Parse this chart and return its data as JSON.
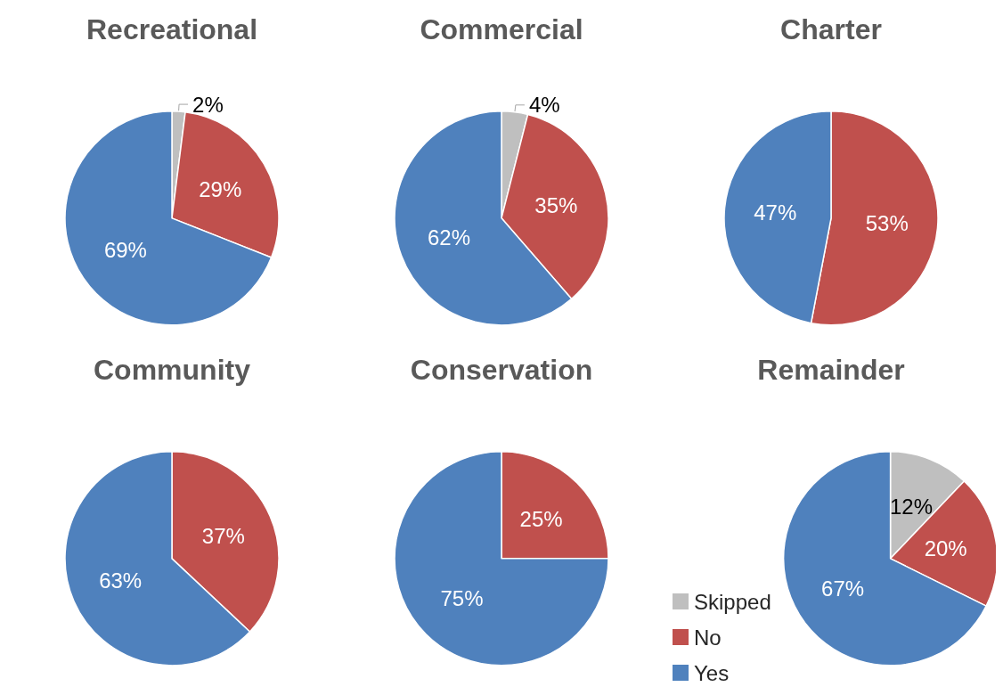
{
  "chart_data": [
    {
      "type": "pie",
      "title": "Recreational",
      "categories": [
        null,
        null,
        null
      ],
      "values": [
        2,
        29,
        69
      ],
      "colors": [
        "#bfbfbf",
        "#c0504d",
        "#4f81bd"
      ],
      "value_labels": [
        "2%",
        "29%",
        "69%"
      ]
    },
    {
      "type": "pie",
      "title": "Commercial",
      "categories": [
        null,
        null,
        null
      ],
      "values": [
        4,
        35,
        62
      ],
      "colors": [
        "#bfbfbf",
        "#c0504d",
        "#4f81bd"
      ],
      "value_labels": [
        "4%",
        "35%",
        "62%"
      ]
    },
    {
      "type": "pie",
      "title": "Charter",
      "categories": [
        null,
        null
      ],
      "values": [
        53,
        47
      ],
      "colors": [
        "#c0504d",
        "#4f81bd"
      ],
      "value_labels": [
        "53%",
        "47%"
      ]
    },
    {
      "type": "pie",
      "title": "Community",
      "categories": [
        null,
        null
      ],
      "values": [
        37,
        63
      ],
      "colors": [
        "#c0504d",
        "#4f81bd"
      ],
      "value_labels": [
        "37%",
        "63%"
      ]
    },
    {
      "type": "pie",
      "title": "Conservation",
      "categories": [
        null,
        null
      ],
      "values": [
        25,
        75
      ],
      "colors": [
        "#c0504d",
        "#4f81bd"
      ],
      "value_labels": [
        "25%",
        "75%"
      ]
    },
    {
      "type": "pie",
      "title": "Remainder",
      "categories": [
        "Skipped",
        "No",
        "Yes"
      ],
      "values": [
        12,
        20,
        67
      ],
      "colors": [
        "#bfbfbf",
        "#c0504d",
        "#4f81bd"
      ],
      "value_labels": [
        "12%",
        "20%",
        "67%"
      ],
      "legend": "bottom left"
    }
  ]
}
